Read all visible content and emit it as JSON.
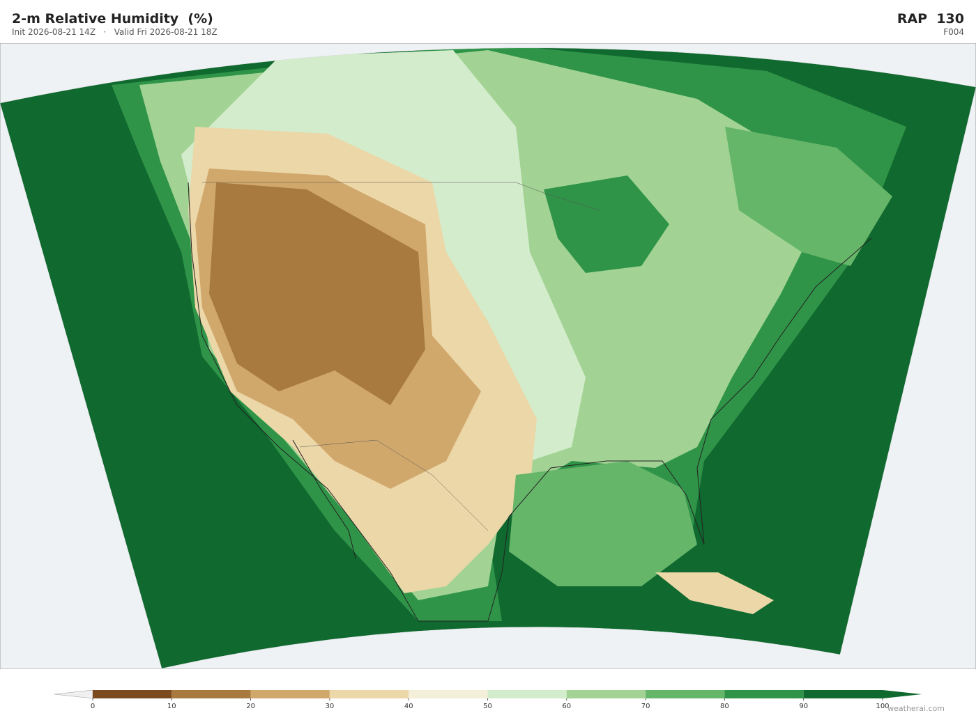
{
  "header": {
    "title": "2-m Relative Humidity  (%)",
    "subtitle": "Init 2026-08-21 14Z   ·   Valid Fri 2026-08-21 18Z",
    "model": "RAP  130",
    "forecast_hour": "F004"
  },
  "colorbar": {
    "ticks": [
      0,
      10,
      20,
      30,
      40,
      50,
      60,
      70,
      80,
      90,
      100
    ],
    "colors": [
      "#7b4a1f",
      "#a87a40",
      "#d1a86c",
      "#ecd7a8",
      "#f3efd9",
      "#d3eccb",
      "#a2d394",
      "#66b66a",
      "#2f9448",
      "#10692f"
    ],
    "under_color": "#f0f0f0",
    "over_color": "#10692f"
  },
  "watermark": "weatherai.com"
}
